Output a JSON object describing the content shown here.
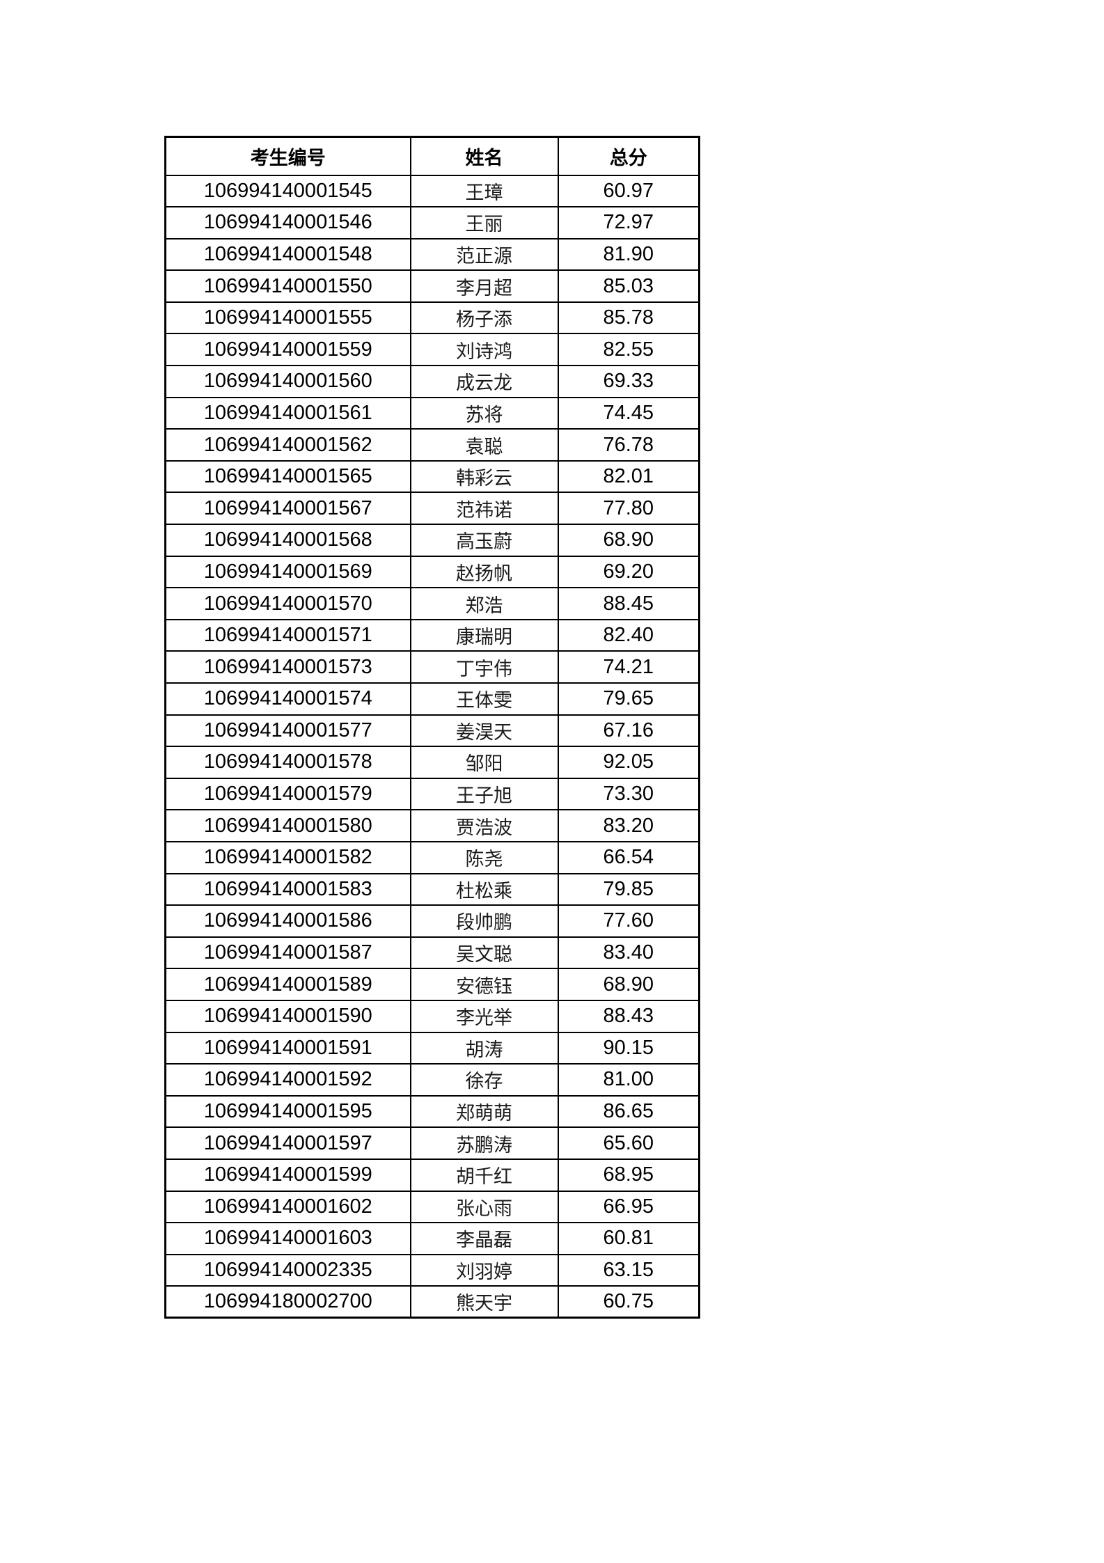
{
  "table": {
    "headers": [
      "考生编号",
      "姓名",
      "总分"
    ],
    "rows": [
      {
        "id": "106994140001545",
        "name": "王璋",
        "score": "60.97"
      },
      {
        "id": "106994140001546",
        "name": "王丽",
        "score": "72.97"
      },
      {
        "id": "106994140001548",
        "name": "范正源",
        "score": "81.90"
      },
      {
        "id": "106994140001550",
        "name": "李月超",
        "score": "85.03"
      },
      {
        "id": "106994140001555",
        "name": "杨子添",
        "score": "85.78"
      },
      {
        "id": "106994140001559",
        "name": "刘诗鸿",
        "score": "82.55"
      },
      {
        "id": "106994140001560",
        "name": "成云龙",
        "score": "69.33"
      },
      {
        "id": "106994140001561",
        "name": "苏将",
        "score": "74.45"
      },
      {
        "id": "106994140001562",
        "name": "袁聪",
        "score": "76.78"
      },
      {
        "id": "106994140001565",
        "name": "韩彩云",
        "score": "82.01"
      },
      {
        "id": "106994140001567",
        "name": "范祎诺",
        "score": "77.80"
      },
      {
        "id": "106994140001568",
        "name": "高玉蔚",
        "score": "68.90"
      },
      {
        "id": "106994140001569",
        "name": "赵扬帆",
        "score": "69.20"
      },
      {
        "id": "106994140001570",
        "name": "郑浩",
        "score": "88.45"
      },
      {
        "id": "106994140001571",
        "name": "康瑞明",
        "score": "82.40"
      },
      {
        "id": "106994140001573",
        "name": "丁宇伟",
        "score": "74.21"
      },
      {
        "id": "106994140001574",
        "name": "王体雯",
        "score": "79.65"
      },
      {
        "id": "106994140001577",
        "name": "姜淏天",
        "score": "67.16"
      },
      {
        "id": "106994140001578",
        "name": "邹阳",
        "score": "92.05"
      },
      {
        "id": "106994140001579",
        "name": "王子旭",
        "score": "73.30"
      },
      {
        "id": "106994140001580",
        "name": "贾浩波",
        "score": "83.20"
      },
      {
        "id": "106994140001582",
        "name": "陈尧",
        "score": "66.54"
      },
      {
        "id": "106994140001583",
        "name": "杜松乘",
        "score": "79.85"
      },
      {
        "id": "106994140001586",
        "name": "段帅鹏",
        "score": "77.60"
      },
      {
        "id": "106994140001587",
        "name": "吴文聪",
        "score": "83.40"
      },
      {
        "id": "106994140001589",
        "name": "安德钰",
        "score": "68.90"
      },
      {
        "id": "106994140001590",
        "name": "李光举",
        "score": "88.43"
      },
      {
        "id": "106994140001591",
        "name": "胡涛",
        "score": "90.15"
      },
      {
        "id": "106994140001592",
        "name": "徐存",
        "score": "81.00"
      },
      {
        "id": "106994140001595",
        "name": "郑萌萌",
        "score": "86.65"
      },
      {
        "id": "106994140001597",
        "name": "苏鹏涛",
        "score": "65.60"
      },
      {
        "id": "106994140001599",
        "name": "胡千红",
        "score": "68.95"
      },
      {
        "id": "106994140001602",
        "name": "张心雨",
        "score": "66.95"
      },
      {
        "id": "106994140001603",
        "name": "李晶磊",
        "score": "60.81"
      },
      {
        "id": "106994140002335",
        "name": "刘羽婷",
        "score": "63.15"
      },
      {
        "id": "106994180002700",
        "name": "熊天宇",
        "score": "60.75"
      }
    ]
  }
}
